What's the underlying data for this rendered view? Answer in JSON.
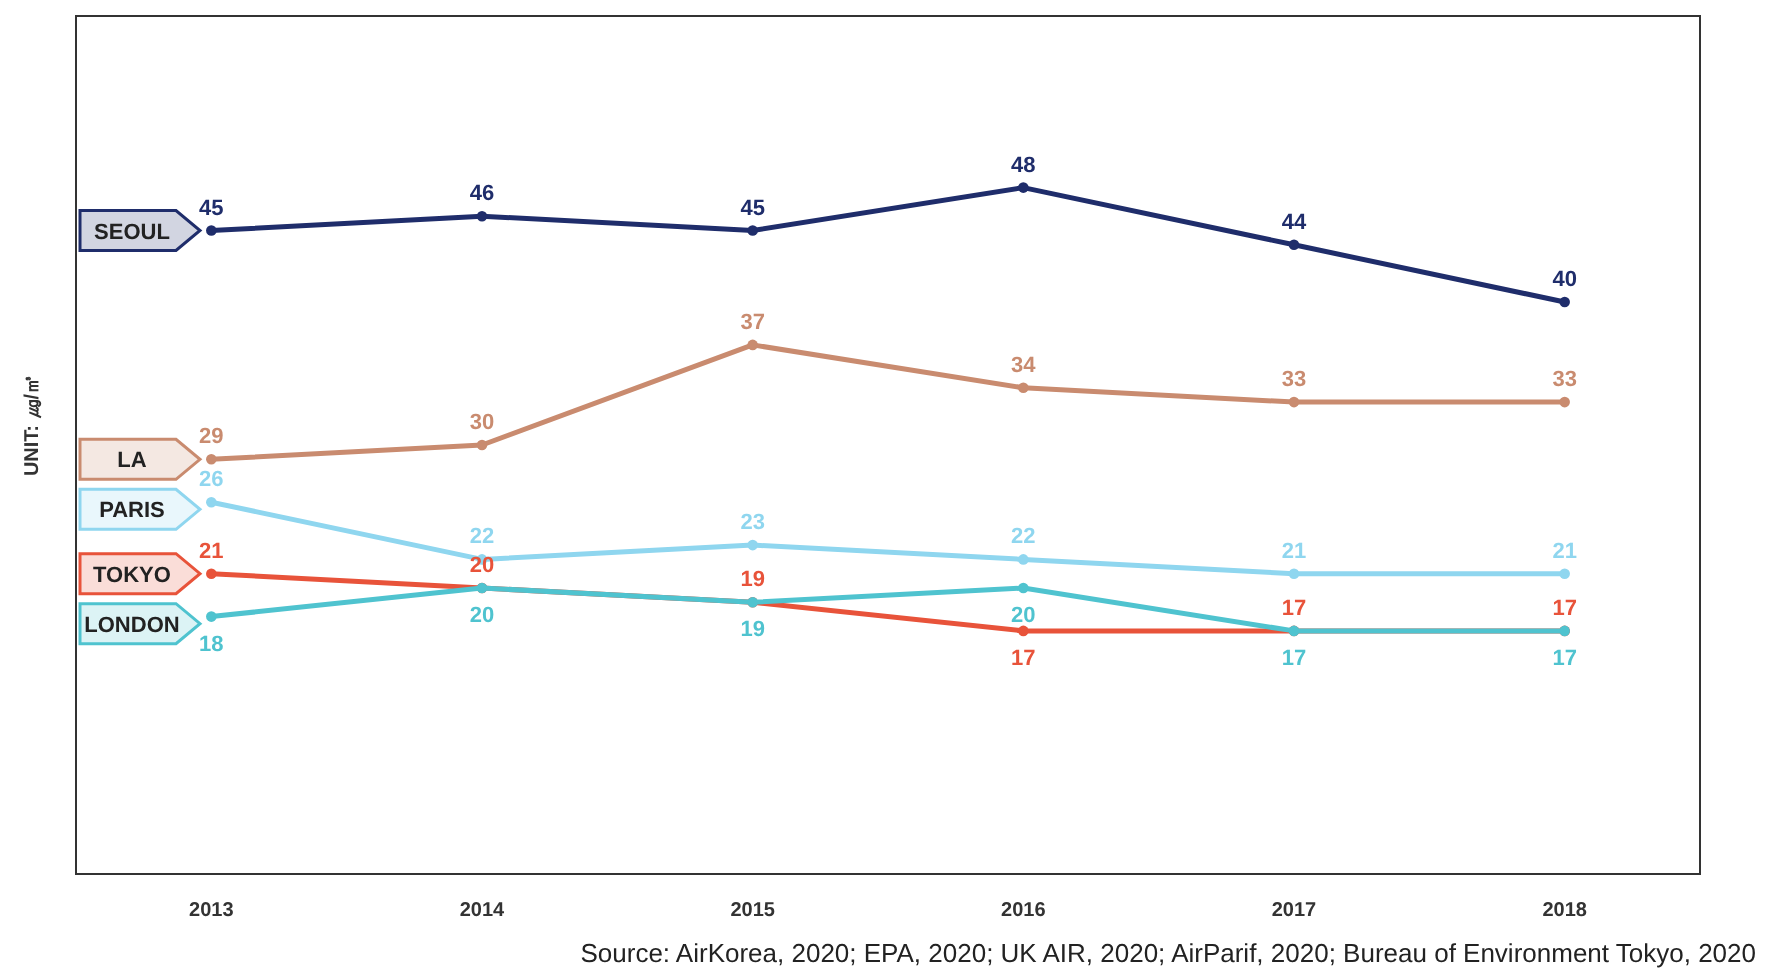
{
  "chart_data": {
    "type": "line",
    "categories": [
      "2013",
      "2014",
      "2015",
      "2016",
      "2017",
      "2018"
    ],
    "ylabel": "UNIT: ㎍/㎥",
    "ylim": [
      0,
      60
    ],
    "tick_labels": "x",
    "data_labels": true,
    "legend": "left",
    "marker": "circle",
    "annotations": [
      "Source: AirKorea, 2020; EPA, 2020; UK AIR, 2020; AirParif, 2020; Bureau of Environment Tokyo, 2020"
    ],
    "series": [
      {
        "name": "SEOUL",
        "color": "#1f2d6b",
        "values": [
          45,
          46,
          45,
          48,
          44,
          40
        ]
      },
      {
        "name": "LA",
        "color": "#c98b6f",
        "values": [
          29,
          30,
          37,
          34,
          33,
          33
        ]
      },
      {
        "name": "PARIS",
        "color": "#8fd6ef",
        "values": [
          26,
          22,
          23,
          22,
          21,
          21
        ]
      },
      {
        "name": "TOKYO",
        "color": "#e8533a",
        "values": [
          21,
          20,
          19,
          17,
          17,
          17
        ]
      },
      {
        "name": "LONDON",
        "color": "#4fc3cf",
        "values": [
          18,
          20,
          19,
          20,
          17,
          17
        ]
      }
    ]
  }
}
